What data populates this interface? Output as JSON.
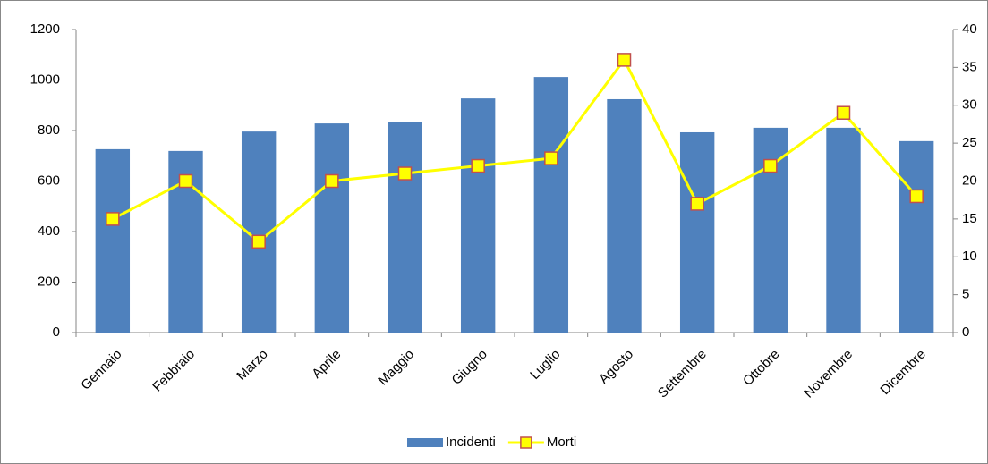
{
  "chart_data": {
    "type": "bar",
    "categories": [
      "Gennaio",
      "Febbraio",
      "Marzo",
      "Aprile",
      "Maggio",
      "Giugno",
      "Luglio",
      "Agosto",
      "Settembre",
      "Ottobre",
      "Novembre",
      "Dicembre"
    ],
    "series": [
      {
        "name": "Incidenti",
        "type": "bar",
        "color": "#4f81bd",
        "values": [
          726,
          719,
          796,
          828,
          835,
          927,
          1012,
          924,
          793,
          811,
          811,
          758
        ]
      },
      {
        "name": "Morti",
        "type": "line",
        "axis": "y2",
        "color": "#ffff00",
        "marker_edge": "#c0504d",
        "values": [
          15,
          20,
          12,
          20,
          21,
          22,
          23,
          36,
          17,
          22,
          29,
          18
        ]
      }
    ],
    "ylim": [
      0,
      1200
    ],
    "yticks": [
      0,
      200,
      400,
      600,
      800,
      1000,
      1200
    ],
    "y2lim": [
      0,
      40
    ],
    "y2ticks": [
      0,
      5,
      10,
      15,
      20,
      25,
      30,
      35,
      40
    ],
    "grid": false,
    "legend": "bottom"
  }
}
